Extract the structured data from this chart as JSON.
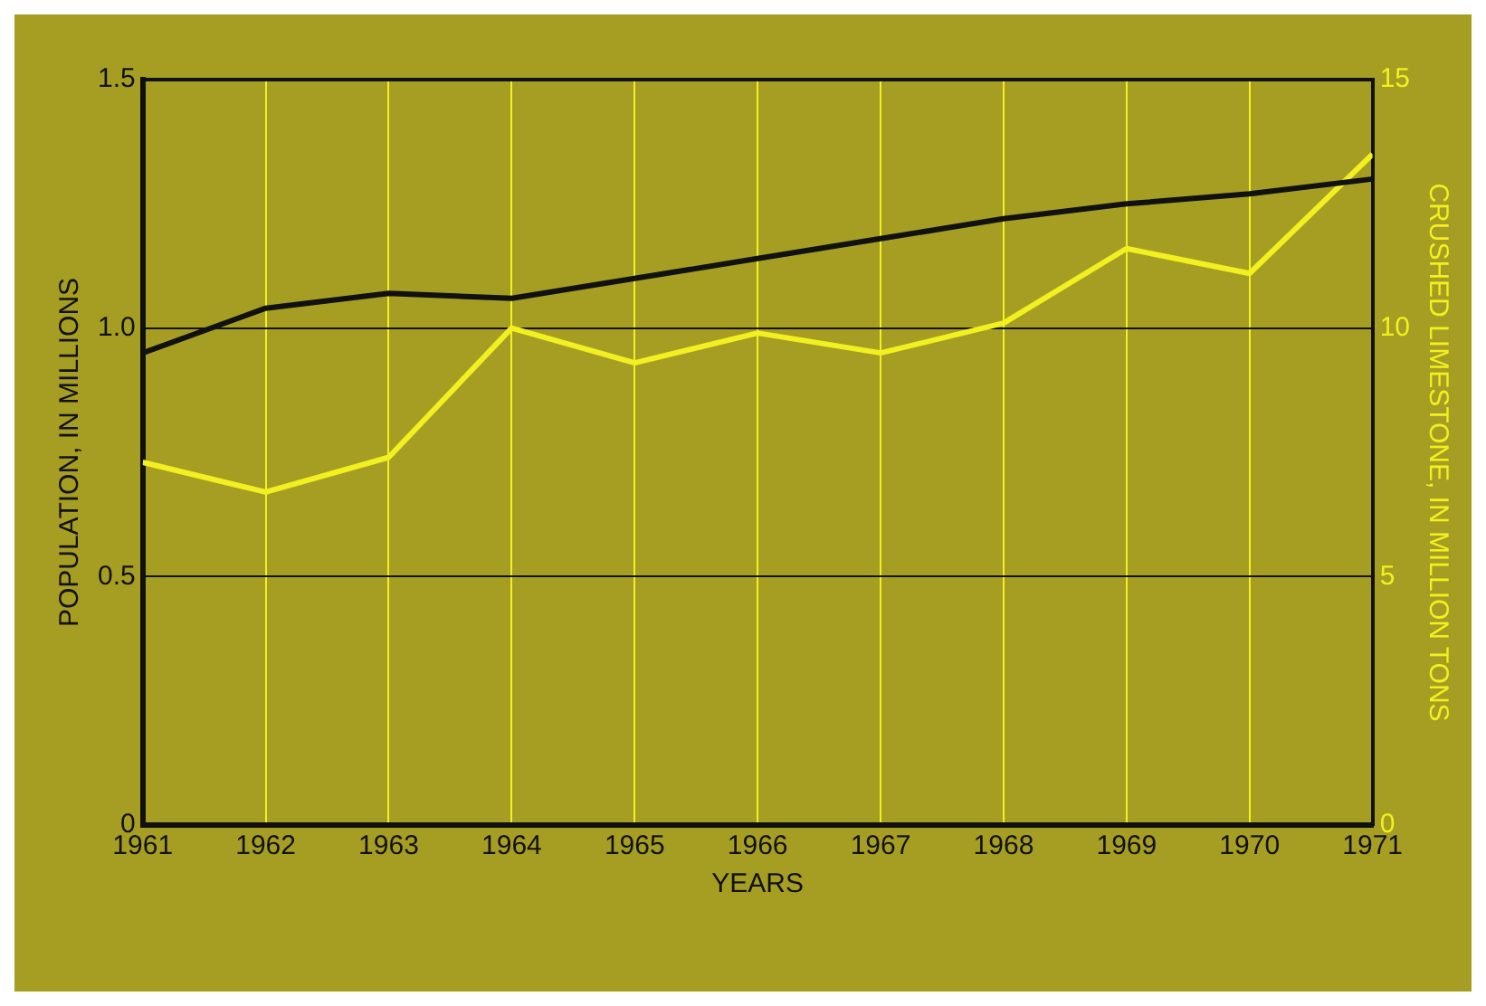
{
  "chart_data": {
    "type": "line",
    "xlabel": "YEARS",
    "ylabel": "POPULATION, IN MILLIONS",
    "y2label": "CRUSHED LIMESTONE, IN MILLION TONS",
    "x": [
      1961,
      1962,
      1963,
      1964,
      1965,
      1966,
      1967,
      1968,
      1969,
      1970,
      1971
    ],
    "series": [
      {
        "color": "#111111",
        "values": [
          0.95,
          1.04,
          1.07,
          1.06,
          1.1,
          1.14,
          1.18,
          1.22,
          1.25,
          1.27,
          1.3
        ]
      },
      {
        "color": "#f2f020",
        "axis": "y2",
        "values": [
          7.3,
          6.7,
          7.4,
          10.0,
          9.3,
          9.9,
          9.5,
          10.1,
          11.6,
          11.1,
          13.5
        ]
      }
    ],
    "xlim": [
      1961,
      1971
    ],
    "xticks": [
      1961,
      1962,
      1963,
      1964,
      1965,
      1966,
      1967,
      1968,
      1969,
      1970,
      1971
    ],
    "ylim": [
      0,
      1.5
    ],
    "yticks": [
      0,
      0.5,
      {
        "value": 1,
        "label": "1.0"
      },
      1.5
    ],
    "y2lim": [
      0,
      15
    ],
    "y2ticks": [
      0,
      5,
      10,
      15
    ],
    "grid": true,
    "legend": false,
    "marker": "none",
    "line_style": "solid"
  }
}
